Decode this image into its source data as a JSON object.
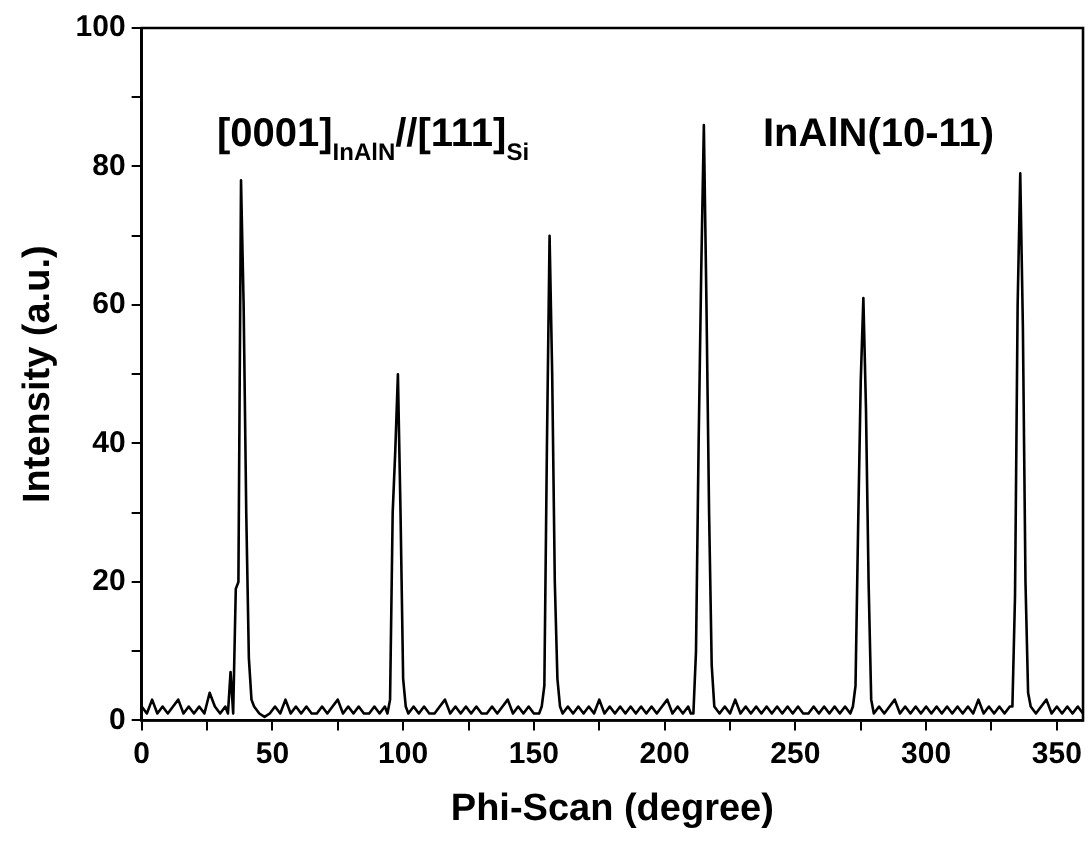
{
  "chart_data": {
    "type": "line",
    "xlabel": "Phi-Scan (degree)",
    "ylabel": "Intensity (a.u.)",
    "annotations": [
      "[0001]$_{InAlN}$//[111]$_{Si}$",
      "InAlN(10-11)"
    ],
    "xlim": [
      0,
      360
    ],
    "xticks": [
      0,
      {
        "value": 25,
        "label": null
      },
      50,
      {
        "value": 75,
        "label": null
      },
      100,
      {
        "value": 125,
        "label": null
      },
      150,
      {
        "value": 175,
        "label": null
      },
      200,
      {
        "value": 225,
        "label": null
      },
      250,
      {
        "value": 275,
        "label": null
      },
      300,
      {
        "value": 325,
        "label": null
      },
      350
    ],
    "ylim": [
      0,
      100
    ],
    "yticks": [
      0,
      {
        "value": 10,
        "label": null
      },
      20,
      {
        "value": 30,
        "label": null
      },
      40,
      {
        "value": 50,
        "label": null
      },
      60,
      {
        "value": 70,
        "label": null
      },
      80,
      {
        "value": 90,
        "label": null
      },
      100
    ],
    "grid": false,
    "legend": false,
    "marker": "none",
    "line_style": "solid",
    "series": [
      {
        "color": "#000000",
        "x": [
          0,
          2,
          4,
          6,
          8,
          10,
          12,
          14,
          16,
          18,
          20,
          22,
          24,
          26,
          28,
          30,
          32,
          33,
          34,
          35,
          36,
          37,
          38,
          39,
          40,
          41,
          42,
          43,
          45,
          47,
          49,
          51,
          53,
          55,
          57,
          59,
          61,
          63,
          65,
          67,
          69,
          71,
          73,
          75,
          77,
          79,
          81,
          83,
          85,
          87,
          89,
          91,
          93,
          94,
          95,
          96,
          97,
          98,
          99,
          100,
          101,
          102,
          104,
          106,
          108,
          110,
          112,
          114,
          116,
          118,
          120,
          122,
          124,
          126,
          128,
          130,
          132,
          134,
          136,
          138,
          140,
          142,
          144,
          146,
          148,
          150,
          152,
          153,
          154,
          155,
          156,
          157,
          158,
          159,
          160,
          161,
          163,
          165,
          167,
          169,
          171,
          173,
          175,
          177,
          179,
          181,
          183,
          185,
          187,
          189,
          191,
          193,
          195,
          197,
          199,
          201,
          203,
          205,
          207,
          209,
          210,
          211,
          212,
          213,
          214,
          215,
          216,
          217,
          218,
          219,
          221,
          223,
          225,
          227,
          229,
          231,
          233,
          235,
          237,
          239,
          241,
          243,
          245,
          247,
          249,
          251,
          253,
          255,
          257,
          259,
          261,
          263,
          265,
          267,
          269,
          271,
          272,
          273,
          274,
          275,
          276,
          277,
          278,
          279,
          280,
          282,
          284,
          286,
          288,
          290,
          292,
          294,
          296,
          298,
          300,
          302,
          304,
          306,
          308,
          310,
          312,
          314,
          316,
          318,
          320,
          322,
          324,
          326,
          328,
          330,
          332,
          333,
          334,
          335,
          336,
          337,
          338,
          339,
          340,
          342,
          344,
          346,
          348,
          350,
          352,
          354,
          356,
          358,
          360
        ],
        "values": [
          2,
          1,
          3,
          1,
          2,
          1,
          2,
          3,
          1,
          2,
          1,
          2,
          1,
          4,
          2,
          1,
          2,
          1,
          7,
          1,
          19,
          20,
          78,
          60,
          30,
          9,
          3,
          2,
          1,
          0.5,
          1,
          2,
          1,
          3,
          1,
          2,
          1,
          2,
          1,
          1,
          2,
          1,
          2,
          3,
          1,
          2,
          1,
          2,
          1,
          1,
          2,
          1,
          2,
          1,
          3,
          30,
          39,
          50,
          30,
          6,
          2,
          1,
          2,
          1,
          2,
          1,
          1,
          2,
          3,
          1,
          2,
          1,
          2,
          1,
          2,
          1,
          1,
          2,
          1,
          2,
          3,
          1,
          2,
          1,
          2,
          1,
          1,
          2,
          5,
          40,
          70,
          50,
          20,
          6,
          2,
          1,
          2,
          1,
          2,
          1,
          2,
          1,
          3,
          1,
          2,
          1,
          2,
          1,
          2,
          1,
          2,
          1,
          2,
          1,
          2,
          3,
          1,
          2,
          1,
          2,
          1,
          1,
          10,
          40,
          65,
          86,
          60,
          30,
          8,
          2,
          1,
          2,
          1,
          3,
          1,
          2,
          1,
          2,
          1,
          2,
          1,
          2,
          1,
          2,
          1,
          2,
          1,
          1,
          2,
          1,
          2,
          1,
          2,
          1,
          2,
          1,
          2,
          5,
          28,
          49,
          61,
          45,
          20,
          3,
          1,
          2,
          1,
          2,
          3,
          1,
          2,
          1,
          2,
          1,
          2,
          1,
          2,
          1,
          2,
          1,
          2,
          1,
          2,
          1,
          3,
          1,
          2,
          1,
          2,
          1,
          2,
          2,
          18,
          60,
          79,
          57,
          20,
          4,
          2,
          1,
          2,
          3,
          1,
          2,
          1,
          2,
          1,
          2,
          1
        ]
      }
    ]
  }
}
